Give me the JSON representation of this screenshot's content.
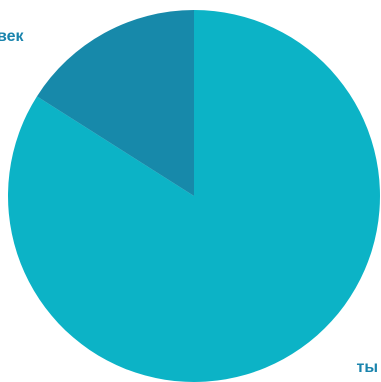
{
  "chart_data": {
    "type": "pie",
    "slices": [
      {
        "label": "ты",
        "value": 84,
        "color": "#0cb3c6"
      },
      {
        "label": "век",
        "value": 16,
        "color": "#1789aa"
      }
    ],
    "title": "",
    "legend": "none"
  },
  "label_color": "#1a84ad"
}
